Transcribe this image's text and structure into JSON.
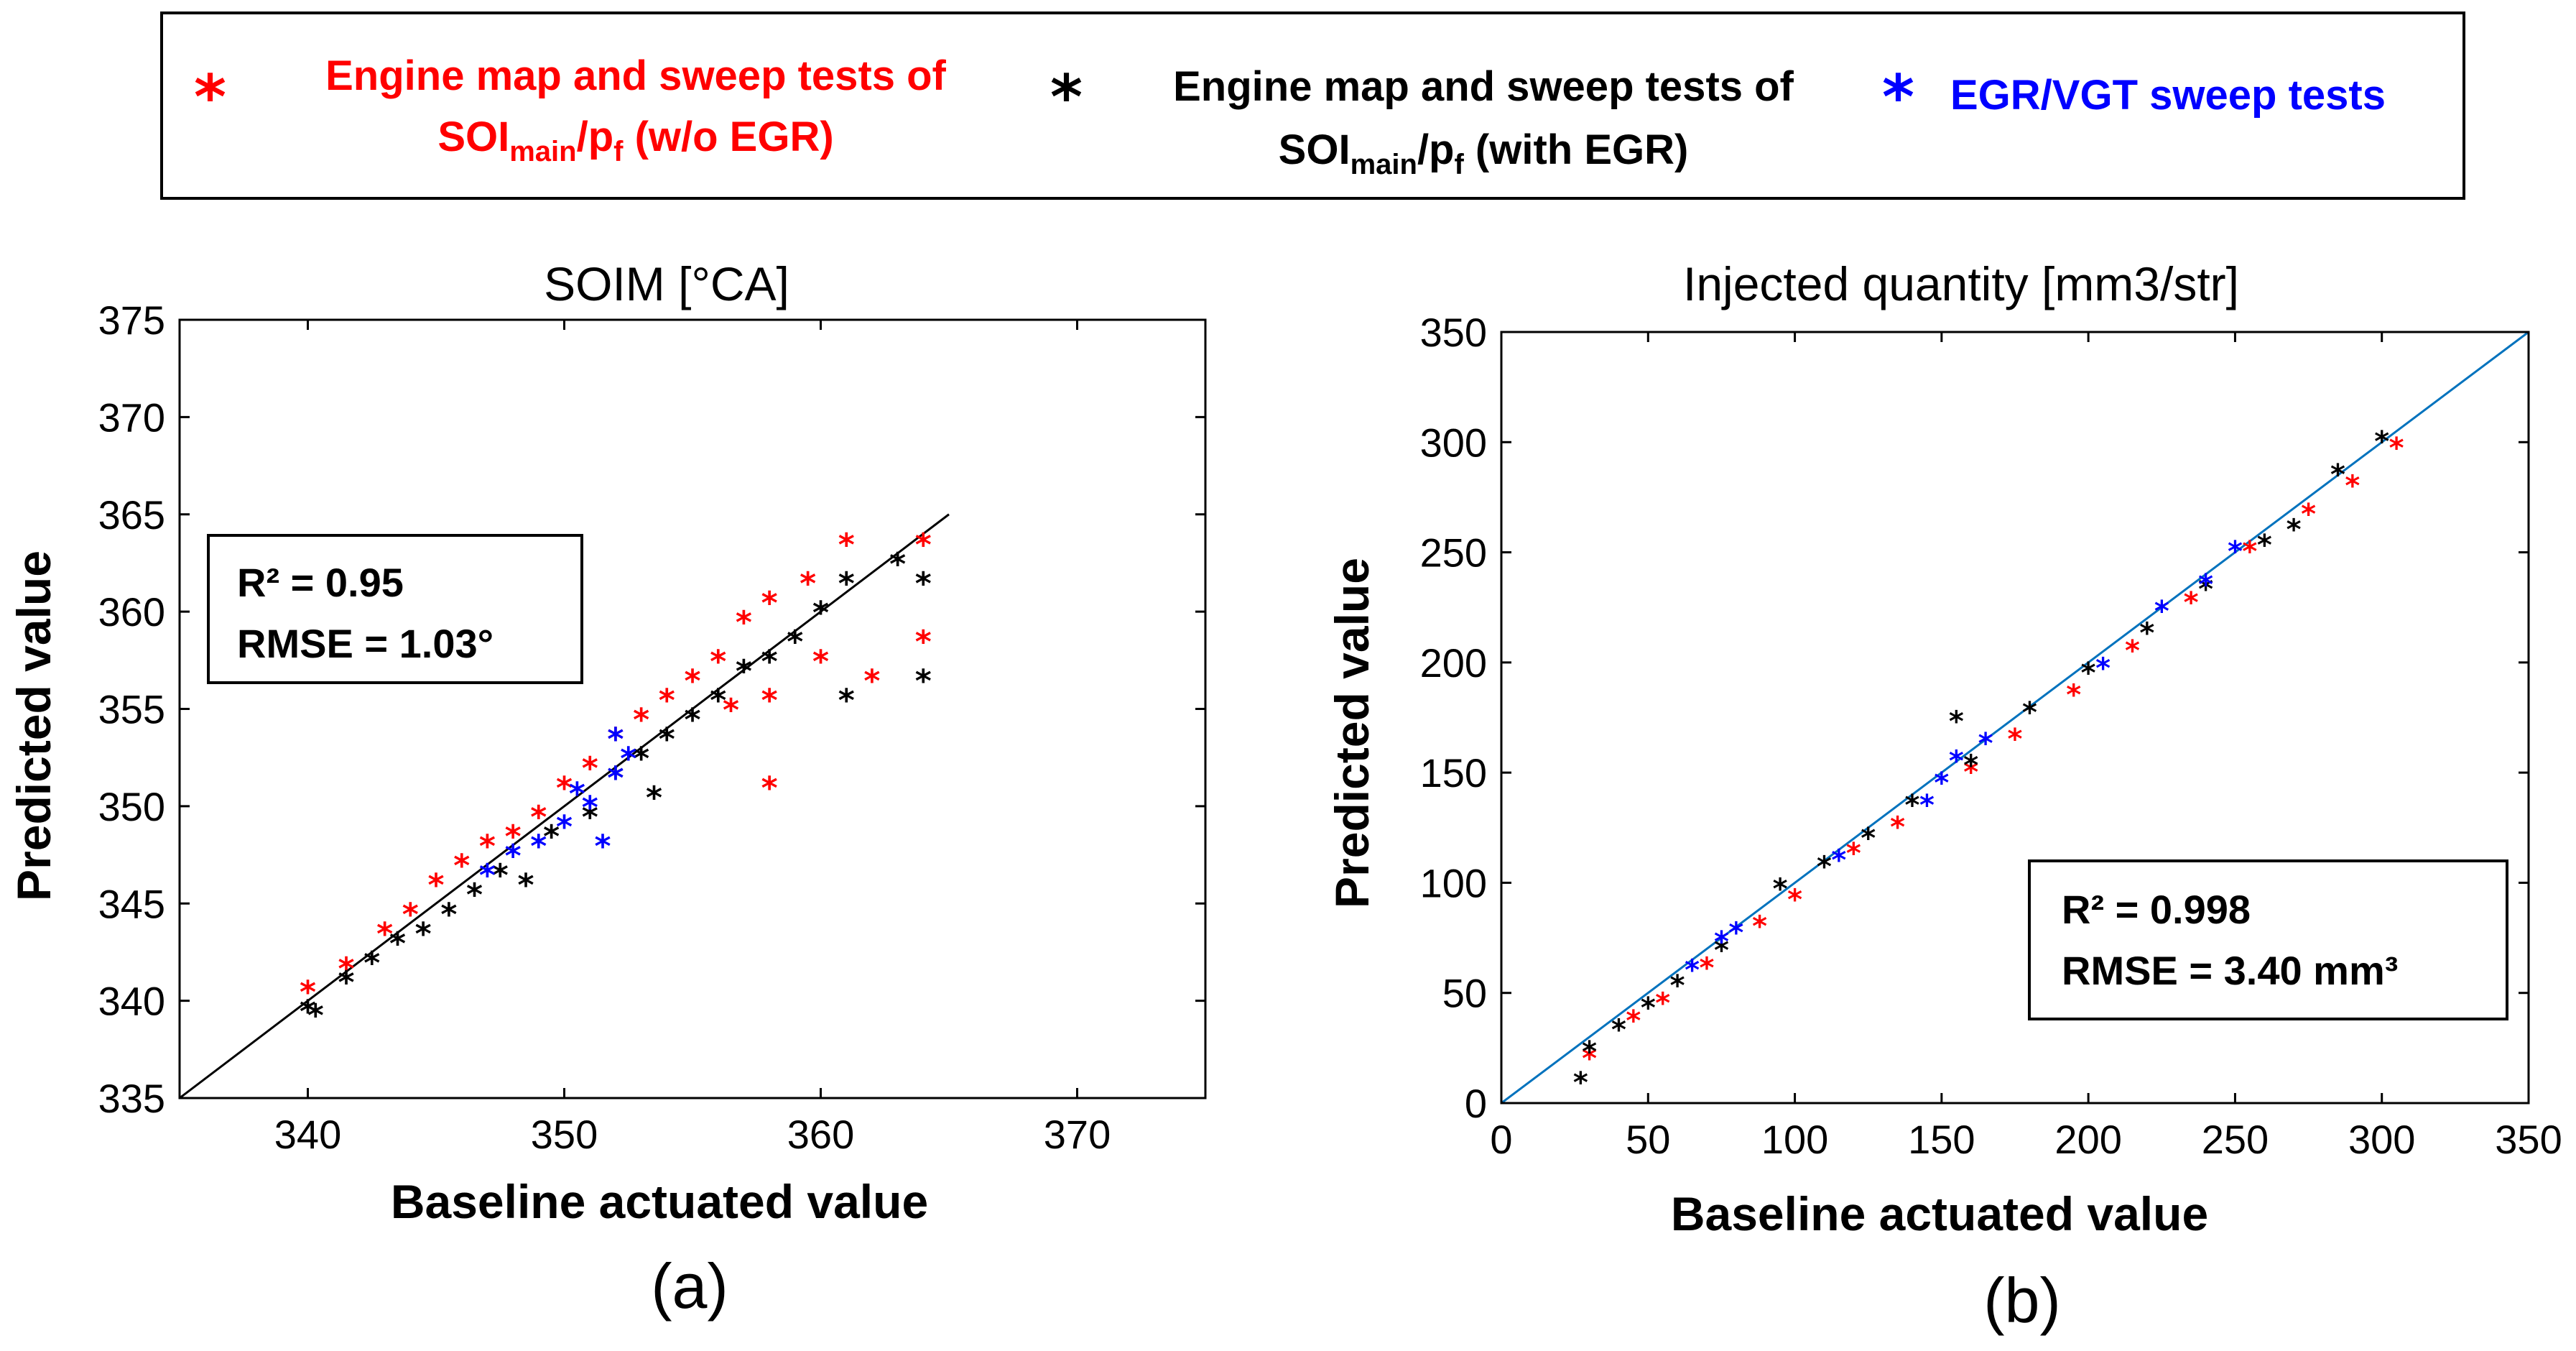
{
  "legend": {
    "items": [
      {
        "line1": "Engine map and sweep tests of",
        "sym": "SOI",
        "sub": "main",
        "mid": "/p",
        "sub2": "f",
        "tail": " (w/o EGR)",
        "color": "#ff0000"
      },
      {
        "line1": "Engine map and sweep tests of",
        "sym": "SOI",
        "sub": "main",
        "mid": "/p",
        "sub2": "f",
        "tail": " (with EGR)",
        "color": "#000000"
      },
      {
        "line1": "EGR/VGT sweep tests",
        "color": "#0000ff"
      }
    ]
  },
  "chart_data": [
    {
      "type": "scatter",
      "panel": "(a)",
      "title": "SOIM [°CA]",
      "xlabel": "Baseline actuated value",
      "ylabel": "Predicted value",
      "xlim": [
        335,
        375
      ],
      "ylim": [
        335,
        375
      ],
      "xticks": [
        340,
        350,
        360,
        370
      ],
      "yticks": [
        335,
        340,
        345,
        350,
        355,
        360,
        365,
        370,
        375
      ],
      "stats": {
        "r2": "R² = 0.95",
        "rmse": "RMSE = 1.03°"
      },
      "fit_line": {
        "x": [
          335,
          365
        ],
        "y": [
          335,
          365
        ],
        "color": "#000000"
      },
      "series": [
        {
          "name": "Engine map and sweep tests of SOImain/pf (w/o EGR)",
          "color": "#ff0000",
          "points": [
            [
              340,
              341
            ],
            [
              341.5,
              342.2
            ],
            [
              343,
              344
            ],
            [
              344,
              345
            ],
            [
              345,
              346.5
            ],
            [
              346,
              347.5
            ],
            [
              347,
              348.5
            ],
            [
              348,
              349
            ],
            [
              349,
              350
            ],
            [
              350,
              351.5
            ],
            [
              351,
              352.5
            ],
            [
              352,
              354
            ],
            [
              353,
              355
            ],
            [
              354,
              356
            ],
            [
              355,
              357
            ],
            [
              356,
              358
            ],
            [
              357,
              360
            ],
            [
              358,
              361
            ],
            [
              358,
              356
            ],
            [
              358,
              351.5
            ],
            [
              359.5,
              362
            ],
            [
              361,
              364
            ],
            [
              362,
              357
            ],
            [
              364,
              364
            ],
            [
              364,
              359
            ],
            [
              360,
              358
            ],
            [
              356.5,
              355.5
            ]
          ]
        },
        {
          "name": "Engine map and sweep tests of SOImain/pf (with EGR)",
          "color": "#000000",
          "points": [
            [
              340,
              340
            ],
            [
              340.3,
              339.8
            ],
            [
              341.5,
              341.5
            ],
            [
              342.5,
              342.5
            ],
            [
              343.5,
              343.5
            ],
            [
              344.5,
              344
            ],
            [
              345.5,
              345
            ],
            [
              346.5,
              346
            ],
            [
              347.5,
              347
            ],
            [
              348.5,
              346.5
            ],
            [
              349.5,
              349
            ],
            [
              351,
              350
            ],
            [
              352,
              352
            ],
            [
              353,
              353
            ],
            [
              354,
              354
            ],
            [
              355,
              355
            ],
            [
              356,
              356
            ],
            [
              357,
              357.5
            ],
            [
              358,
              358
            ],
            [
              359,
              359
            ],
            [
              360,
              360.5
            ],
            [
              361,
              362
            ],
            [
              361,
              356
            ],
            [
              363,
              363
            ],
            [
              364,
              357
            ],
            [
              364,
              362
            ],
            [
              353.5,
              351
            ]
          ]
        },
        {
          "name": "EGR/VGT sweep tests",
          "color": "#0000ff",
          "points": [
            [
              347,
              347
            ],
            [
              348,
              348
            ],
            [
              349,
              348.5
            ],
            [
              350,
              349.5
            ],
            [
              351,
              350.5
            ],
            [
              351.5,
              348.5
            ],
            [
              352,
              352
            ],
            [
              352.5,
              353
            ],
            [
              352,
              354
            ],
            [
              350.5,
              351.2
            ]
          ]
        }
      ]
    },
    {
      "type": "scatter",
      "panel": "(b)",
      "title": "Injected quantity [mm3/str]",
      "xlabel": "Baseline actuated value",
      "ylabel": "Predicted value",
      "xlim": [
        0,
        350
      ],
      "ylim": [
        0,
        350
      ],
      "xticks": [
        0,
        50,
        100,
        150,
        200,
        250,
        300,
        350
      ],
      "yticks": [
        0,
        50,
        100,
        150,
        200,
        250,
        300,
        350
      ],
      "stats": {
        "r2": "R² = 0.998",
        "rmse": "RMSE = 3.40 mm³"
      },
      "fit_line": {
        "x": [
          0,
          350
        ],
        "y": [
          0,
          350
        ],
        "color": "#0072bd"
      },
      "series": [
        {
          "name": "Engine map and sweep tests of SOImain/pf (w/o EGR)",
          "color": "#ff0000",
          "points": [
            [
              30,
              25
            ],
            [
              45,
              42
            ],
            [
              55,
              50
            ],
            [
              70,
              66
            ],
            [
              88,
              85
            ],
            [
              100,
              97
            ],
            [
              120,
              118
            ],
            [
              135,
              130
            ],
            [
              160,
              155
            ],
            [
              175,
              170
            ],
            [
              195,
              190
            ],
            [
              215,
              210
            ],
            [
              235,
              232
            ],
            [
              255,
              255
            ],
            [
              275,
              272
            ],
            [
              290,
              285
            ],
            [
              305,
              302
            ]
          ]
        },
        {
          "name": "Engine map and sweep tests of SOImain/pf (with EGR)",
          "color": "#000000",
          "points": [
            [
              27,
              14
            ],
            [
              30,
              28
            ],
            [
              40,
              38
            ],
            [
              50,
              48
            ],
            [
              60,
              58
            ],
            [
              75,
              74
            ],
            [
              95,
              102
            ],
            [
              110,
              112
            ],
            [
              125,
              125
            ],
            [
              140,
              140
            ],
            [
              155,
              178
            ],
            [
              160,
              158
            ],
            [
              180,
              182
            ],
            [
              200,
              200
            ],
            [
              220,
              218
            ],
            [
              240,
              238
            ],
            [
              260,
              258
            ],
            [
              270,
              265
            ],
            [
              285,
              290
            ],
            [
              300,
              305
            ]
          ]
        },
        {
          "name": "EGR/VGT sweep tests",
          "color": "#0000ff",
          "points": [
            [
              65,
              65
            ],
            [
              75,
              78
            ],
            [
              80,
              82
            ],
            [
              115,
              115
            ],
            [
              145,
              140
            ],
            [
              150,
              150
            ],
            [
              155,
              160
            ],
            [
              165,
              168
            ],
            [
              205,
              202
            ],
            [
              225,
              228
            ],
            [
              240,
              240
            ],
            [
              250,
              255
            ]
          ]
        }
      ]
    }
  ]
}
